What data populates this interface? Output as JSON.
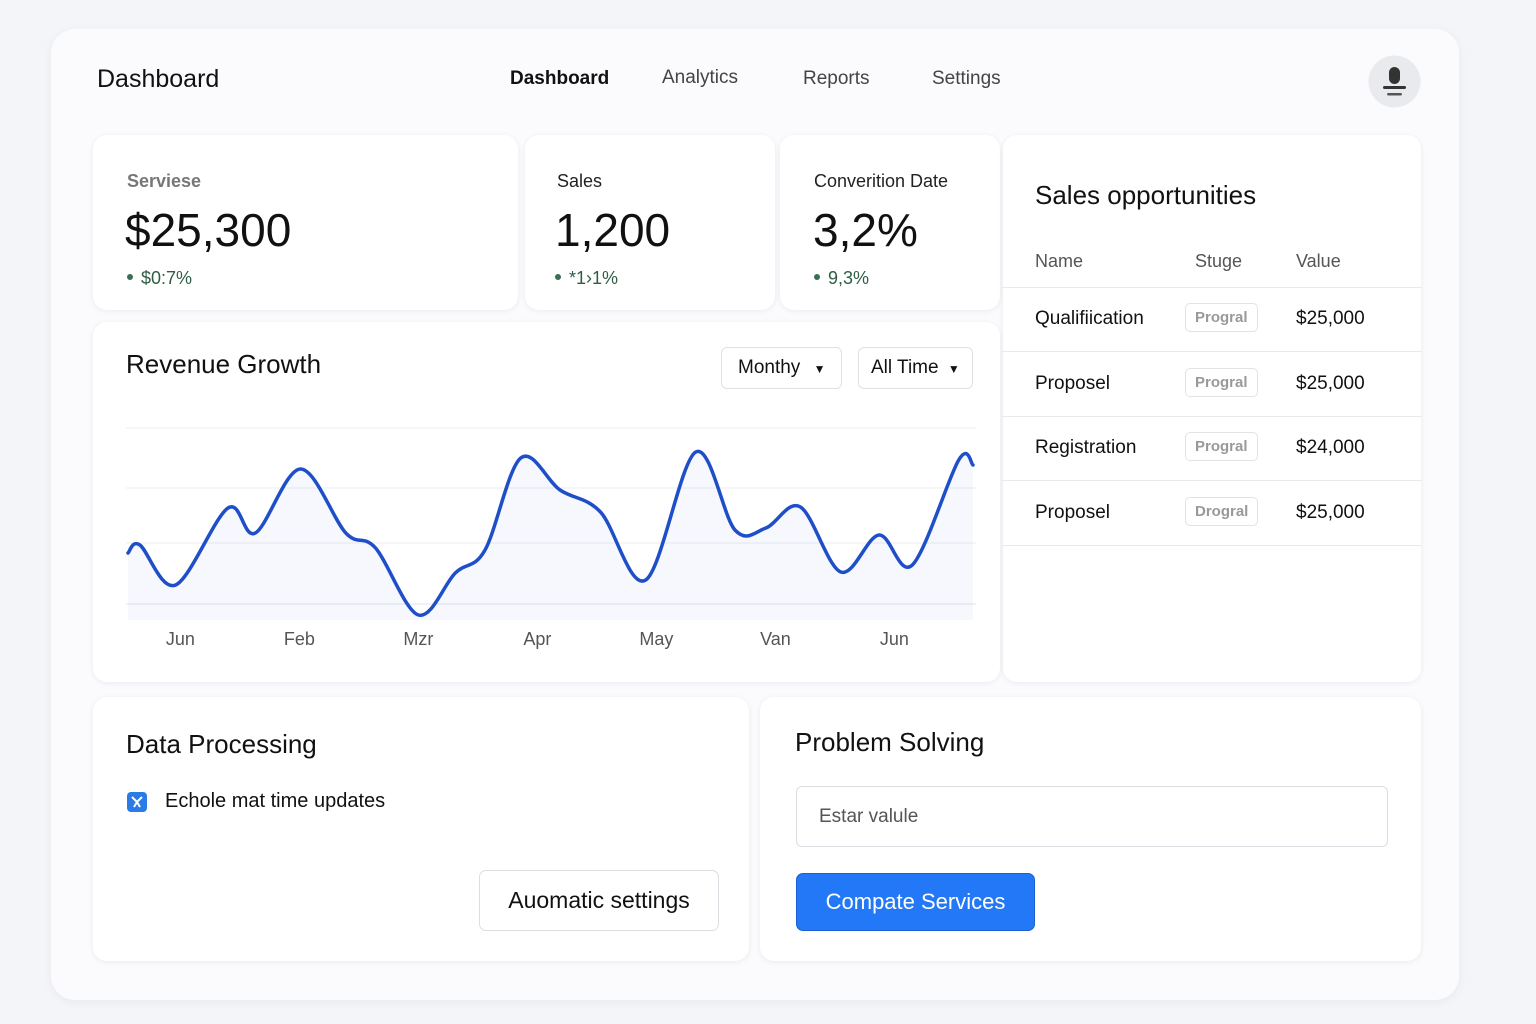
{
  "header": {
    "title": "Dashboard",
    "nav": [
      "Dashboard",
      "Analytics",
      "Reports",
      "Settings"
    ]
  },
  "stats": [
    {
      "label": "Serviese",
      "value": "$25,300",
      "change": "$0:7%"
    },
    {
      "label": "Sales",
      "value": "1,200",
      "change": "*1›1%"
    },
    {
      "label": "Converition Date",
      "value": "3,2%",
      "change": "9,3%"
    }
  ],
  "chart_data": {
    "type": "line",
    "title": "Revenue Growth",
    "color": "#1f4fc8",
    "x": [
      -0.44,
      -0.34,
      -0.04,
      0.4,
      0.63,
      1.01,
      1.39,
      1.64,
      2.0,
      2.31,
      2.56,
      2.86,
      3.19,
      3.53,
      3.91,
      4.33,
      4.66,
      4.92,
      5.21,
      5.55,
      5.87,
      6.15,
      6.54,
      6.66
    ],
    "values": [
      33.5,
      37.5,
      17.5,
      56,
      43.5,
      75.5,
      43.5,
      36,
      2.5,
      23.5,
      35,
      81,
      65,
      54,
      20,
      84,
      45,
      46,
      56.5,
      24,
      42.5,
      27.5,
      80,
      77.5
    ],
    "xlim": [
      -0.44,
      6.66
    ],
    "ylim": [
      0,
      100
    ],
    "xticks": [
      {
        "value": 0,
        "label": "Jun"
      },
      {
        "value": 1,
        "label": "Feb"
      },
      {
        "value": 2,
        "label": "Mzr"
      },
      {
        "value": 3,
        "label": "Apr"
      },
      {
        "value": 4,
        "label": "May"
      },
      {
        "value": 5,
        "label": "Van"
      },
      {
        "value": 6,
        "label": "Jun"
      }
    ]
  },
  "chart_filters": [
    "Monthy",
    "All Time"
  ],
  "opportunities": {
    "title": "Sales opportunities",
    "columns": [
      "Name",
      "Stuge",
      "Value"
    ],
    "rows": [
      [
        "Qualifiication",
        "Progral",
        "$25,000"
      ],
      [
        "Proposel",
        "Progral",
        "$25,000"
      ],
      [
        "Registration",
        "Progral",
        "$24,000"
      ],
      [
        "Proposel",
        "Drogral",
        "$25,000"
      ]
    ]
  },
  "data_processing": {
    "title": "Data Processing",
    "item": "Echole mat time updates",
    "button": "Auomatic settings"
  },
  "problem_solving": {
    "title": "Problem Solving",
    "placeholder": "Estar valule",
    "button": "Compate Services"
  }
}
